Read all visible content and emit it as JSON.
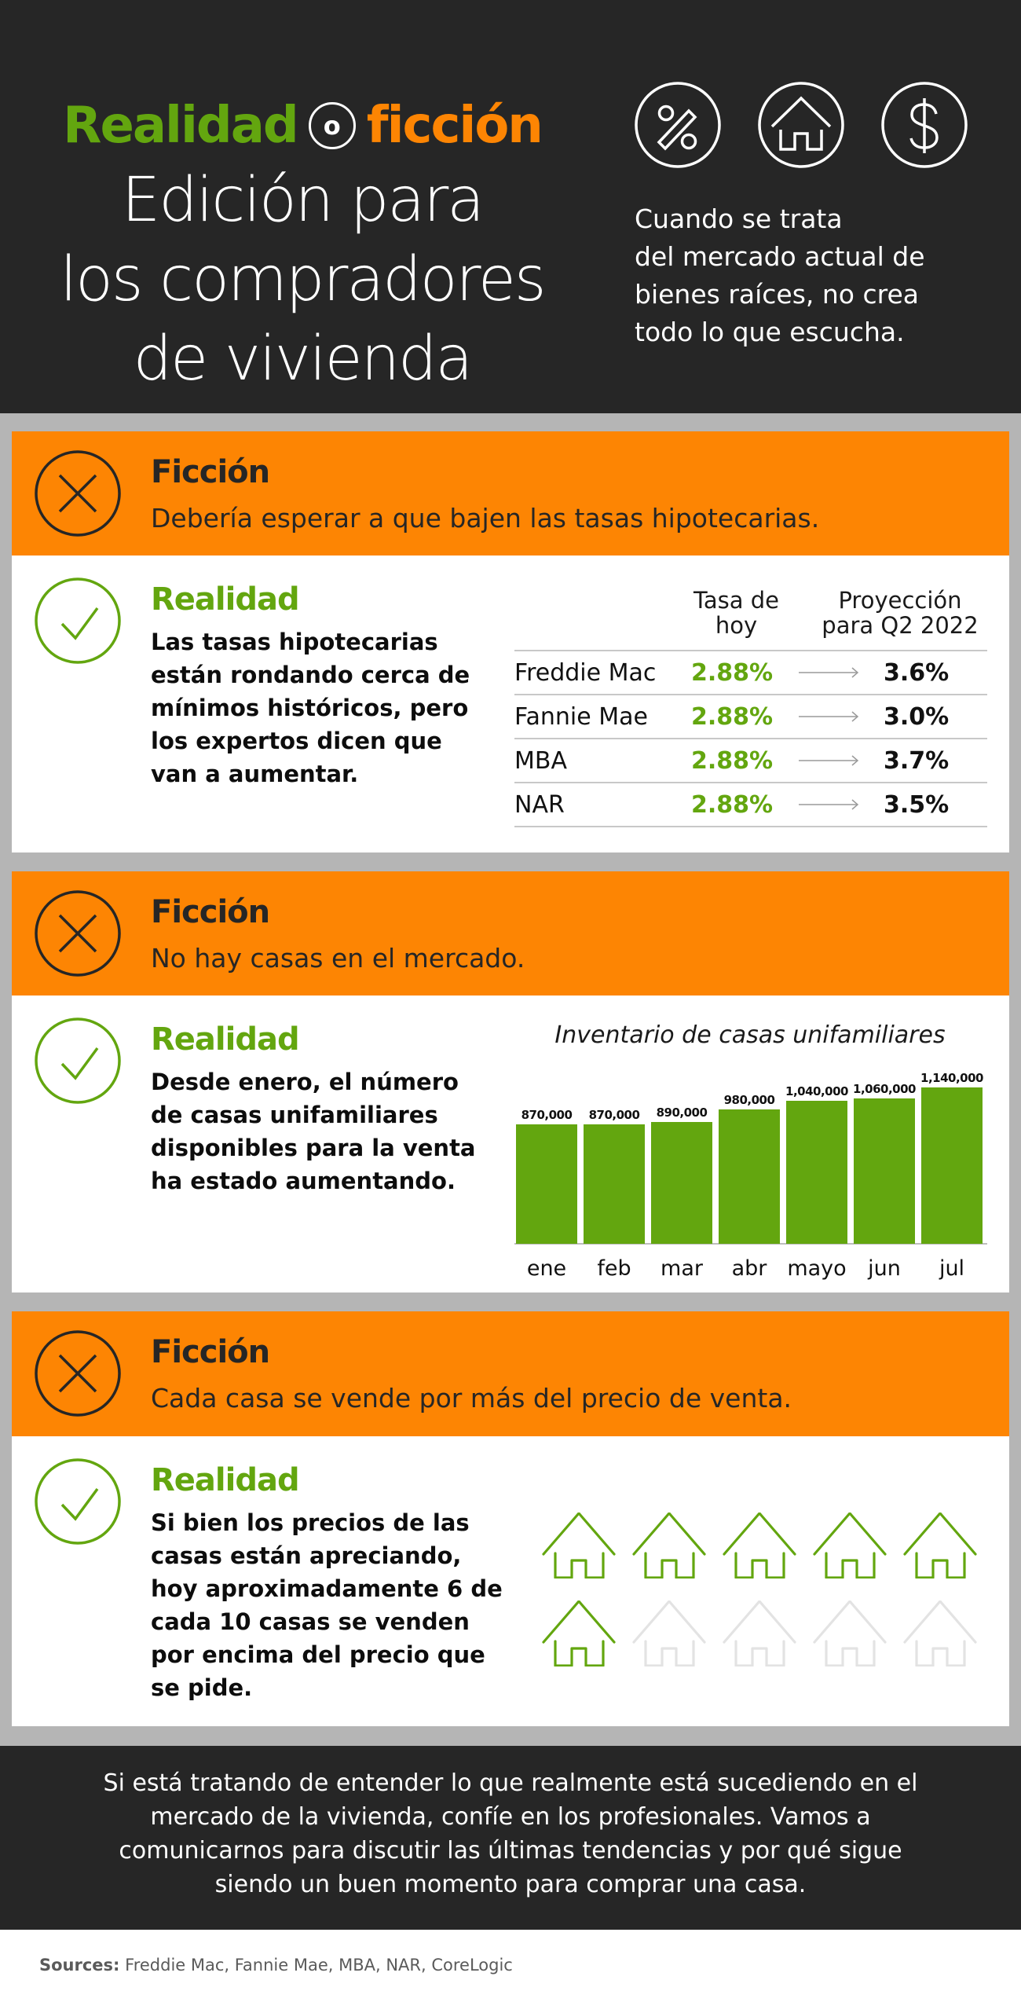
{
  "header": {
    "title_left": "Realidad",
    "title_connector": "o",
    "title_right": "ficción",
    "subtitle_lines": [
      "Edición para",
      "los compradores",
      "de vivienda"
    ],
    "icons": [
      "percent-icon",
      "house-icon",
      "dollar-icon"
    ],
    "tagline_lines": [
      "Cuando se trata",
      "del mercado actual de",
      "bienes raíces, no crea",
      "todo lo que escucha."
    ]
  },
  "colors": {
    "green": "#63a60f",
    "orange": "#fd8503",
    "dark": "#262626",
    "gray": "#b5b5b5",
    "house_inactive": "#e3e3e3"
  },
  "sections": [
    {
      "fiction_label": "Ficción",
      "fiction_text": "Debería esperar a que bajen las tasas hipotecarias.",
      "reality_label": "Realidad",
      "reality_text": "Las tasas hipotecarias están rondando cerca de mínimos históricos, pero los expertos dicen que van a aumentar.",
      "table": {
        "headers": [
          "",
          "Tasa de hoy",
          "Proyección para Q2 2022"
        ],
        "rows": [
          {
            "source": "Freddie Mac",
            "today": "2.88%",
            "projection": "3.6%"
          },
          {
            "source": "Fannie Mae",
            "today": "2.88%",
            "projection": "3.0%"
          },
          {
            "source": "MBA",
            "today": "2.88%",
            "projection": "3.7%"
          },
          {
            "source": "NAR",
            "today": "2.88%",
            "projection": "3.5%"
          }
        ]
      }
    },
    {
      "fiction_label": "Ficción",
      "fiction_text": "No hay casas en el mercado.",
      "reality_label": "Realidad",
      "reality_text": "Desde enero, el número de casas unifamiliares disponibles para la venta ha estado aumentando."
    },
    {
      "fiction_label": "Ficción",
      "fiction_text": "Cada casa se vende por más del precio de venta.",
      "reality_label": "Realidad",
      "reality_text": "Si bien los precios de las casas están apreciando, hoy aproximadamente 6 de cada 10 casas se venden por encima del precio que se pide.",
      "houses": {
        "total": 10,
        "highlighted": 6
      }
    }
  ],
  "chart_data": {
    "type": "bar",
    "title": "Inventario de casas unifamiliares",
    "categories": [
      "ene",
      "feb",
      "mar",
      "abr",
      "mayo",
      "jun",
      "jul"
    ],
    "values": [
      870000,
      870000,
      890000,
      980000,
      1040000,
      1060000,
      1140000
    ],
    "value_labels": [
      "870,000",
      "870,000",
      "890,000",
      "980,000",
      "1,040,000",
      "1,060,000",
      "1,140,000"
    ],
    "xlabel": "",
    "ylabel": "",
    "ylim": [
      0,
      1140000
    ],
    "grid": false,
    "legend": "none",
    "bar_color": "#63a60f"
  },
  "footer": {
    "text": "Si está tratando de entender lo que realmente está sucediendo en el mercado de la vivienda, confíe en los profesionales. Vamos a comunicarnos para discutir las últimas tendencias y por qué sigue siendo un buen momento para comprar una casa.",
    "sources_label": "Sources:",
    "sources_text": "Freddie Mac, Fannie Mae, MBA, NAR, CoreLogic"
  }
}
